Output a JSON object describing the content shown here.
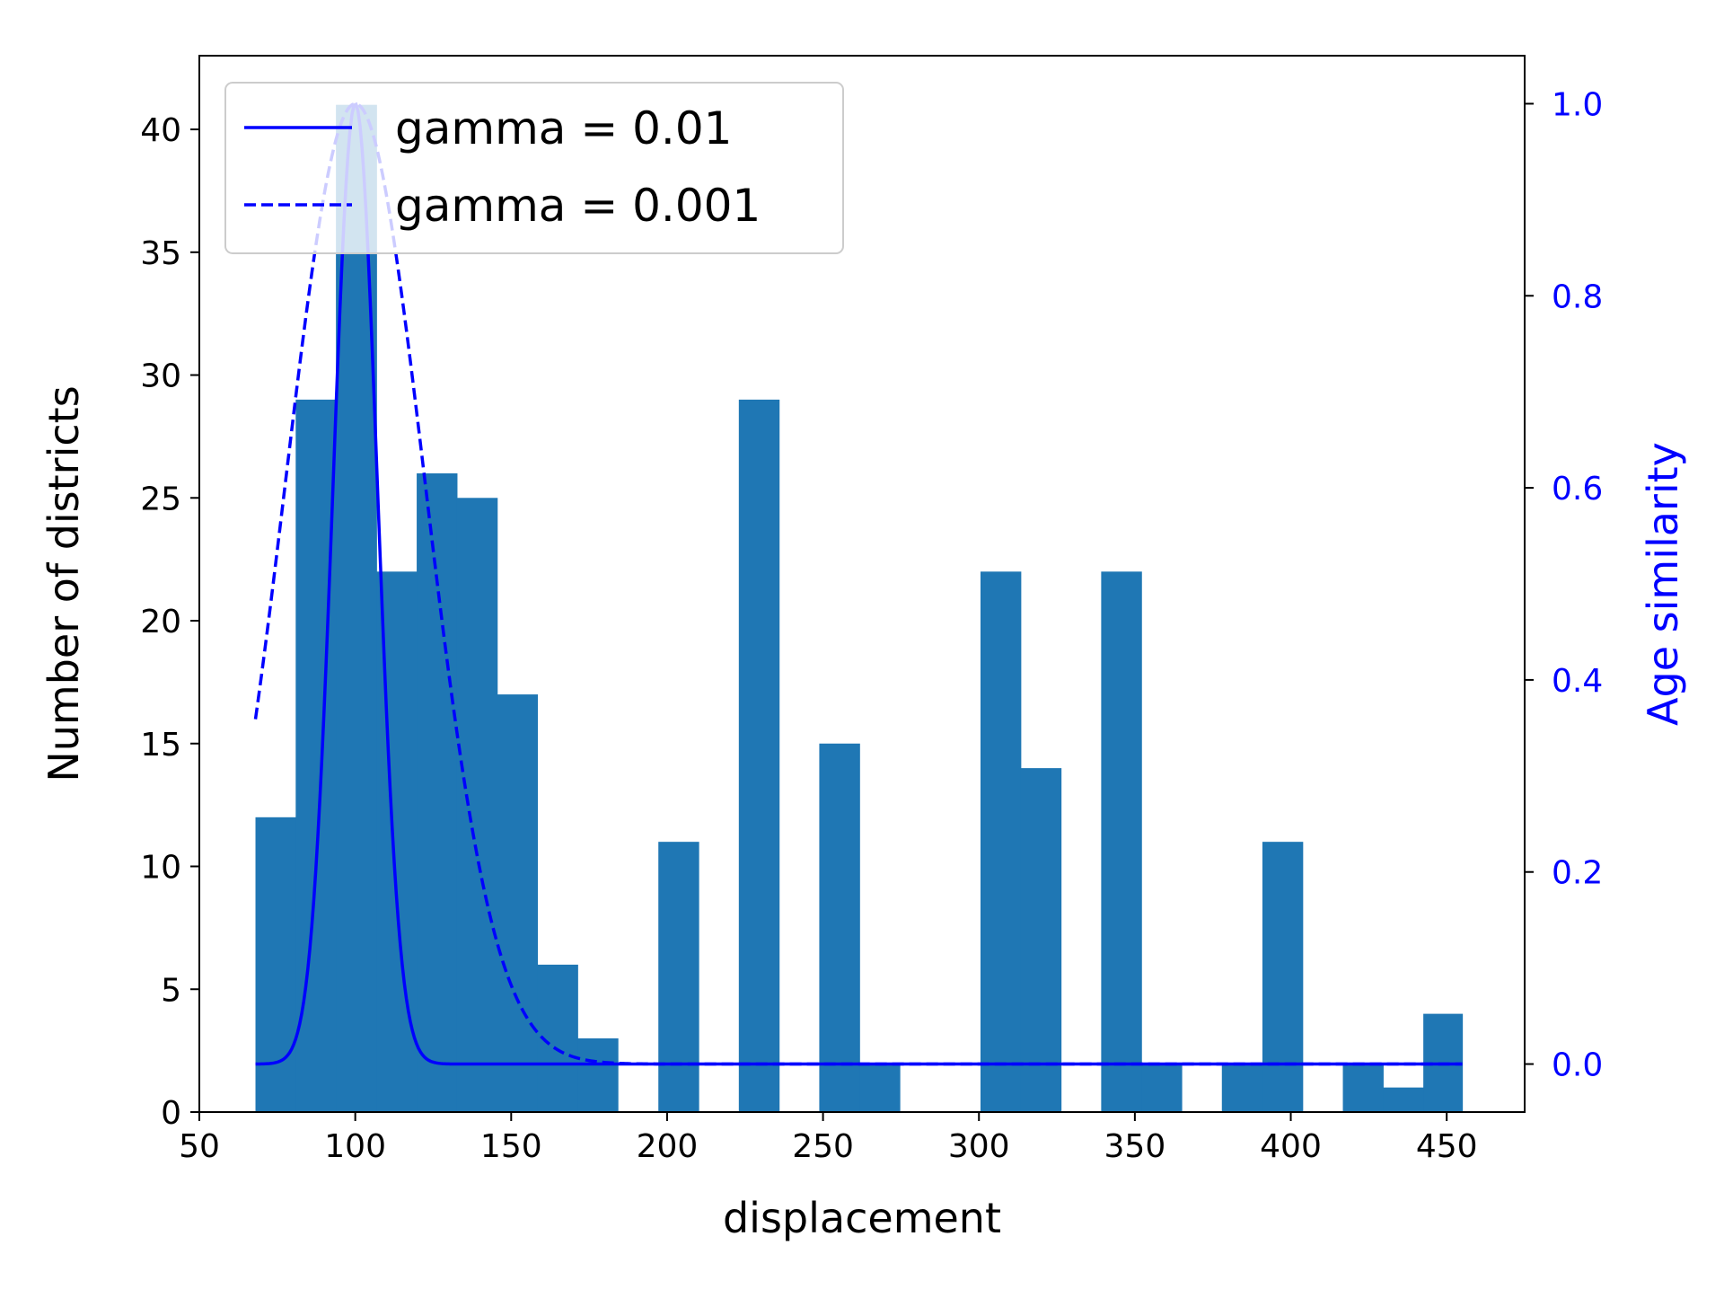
{
  "chart_data": {
    "type": "bar",
    "xlabel": "displacement",
    "ylabel": "Number of districts",
    "y2label": "Age similarity",
    "xlim": [
      50,
      475
    ],
    "ylim": [
      0,
      43
    ],
    "y2lim": [
      -0.05,
      1.05
    ],
    "xticks": [
      50,
      100,
      150,
      200,
      250,
      300,
      350,
      400,
      450
    ],
    "yticks": [
      0,
      5,
      10,
      15,
      20,
      25,
      30,
      35,
      40
    ],
    "y2ticks": [
      0.0,
      0.2,
      0.4,
      0.6,
      0.8,
      1.0
    ],
    "y2tick_labels": [
      "0.0",
      "0.2",
      "0.4",
      "0.6",
      "0.8",
      "1.0"
    ],
    "histogram": {
      "bin_edges": [
        68,
        80.9,
        93.8,
        106.8,
        119.7,
        132.6,
        145.5,
        158.4,
        171.3,
        184.2,
        197.2,
        210.1,
        223.0,
        235.9,
        248.8,
        261.7,
        274.6,
        287.6,
        300.5,
        313.4,
        326.3,
        339.2,
        352.1,
        365.0,
        377.9,
        390.9,
        403.8,
        416.7,
        429.6,
        442.5,
        455
      ],
      "counts": [
        12,
        29,
        41,
        22,
        26,
        25,
        17,
        6,
        3,
        0,
        11,
        0,
        29,
        0,
        15,
        2,
        0,
        0,
        22,
        14,
        0,
        22,
        2,
        0,
        2,
        11,
        0,
        2,
        1,
        4
      ],
      "color": "#1f77b4"
    },
    "series": [
      {
        "name": "gamma = 0.01",
        "style": "solid",
        "color": "#0000ff",
        "function": "exp(-gamma*(x-100)^2)",
        "gamma": 0.01,
        "x_range": [
          68,
          455
        ]
      },
      {
        "name": "gamma = 0.001",
        "style": "dashed",
        "color": "#0000ff",
        "function": "exp(-gamma*(x-100)^2)",
        "gamma": 0.001,
        "x_range": [
          68,
          455
        ]
      }
    ],
    "legend": {
      "position": "top-left"
    },
    "grid": false
  }
}
